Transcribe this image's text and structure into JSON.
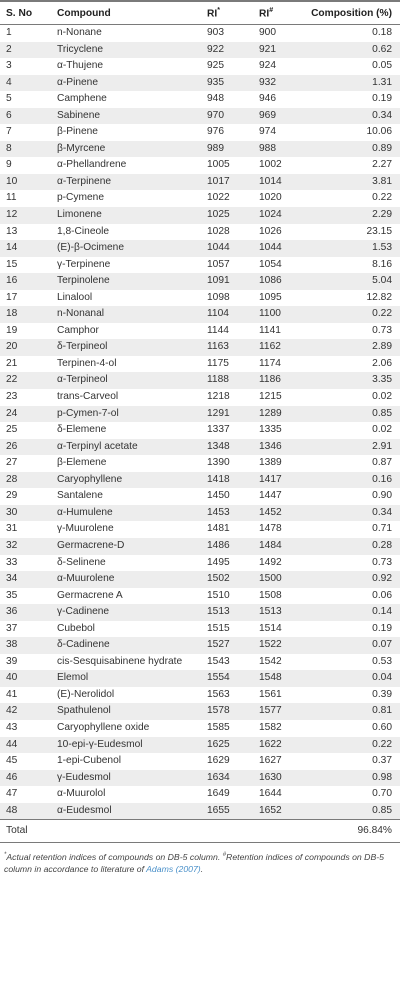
{
  "headers": {
    "sno": "S. No",
    "compound": "Compound",
    "ri1": "RI",
    "ri1_mark": "*",
    "ri2": "RI",
    "ri2_mark": "#",
    "composition": "Composition (%)"
  },
  "rows": [
    [
      "1",
      "n-Nonane",
      "903",
      "900",
      "0.18"
    ],
    [
      "2",
      "Tricyclene",
      "922",
      "921",
      "0.62"
    ],
    [
      "3",
      "α-Thujene",
      "925",
      "924",
      "0.05"
    ],
    [
      "4",
      "α-Pinene",
      "935",
      "932",
      "1.31"
    ],
    [
      "5",
      "Camphene",
      "948",
      "946",
      "0.19"
    ],
    [
      "6",
      "Sabinene",
      "970",
      "969",
      "0.34"
    ],
    [
      "7",
      "β-Pinene",
      "976",
      "974",
      "10.06"
    ],
    [
      "8",
      "β-Myrcene",
      "989",
      "988",
      "0.89"
    ],
    [
      "9",
      "α-Phellandrene",
      "1005",
      "1002",
      "2.27"
    ],
    [
      "10",
      "α-Terpinene",
      "1017",
      "1014",
      "3.81"
    ],
    [
      "11",
      "p-Cymene",
      "1022",
      "1020",
      "0.22"
    ],
    [
      "12",
      "Limonene",
      "1025",
      "1024",
      "2.29"
    ],
    [
      "13",
      "1,8-Cineole",
      "1028",
      "1026",
      "23.15"
    ],
    [
      "14",
      "(E)-β-Ocimene",
      "1044",
      "1044",
      "1.53"
    ],
    [
      "15",
      "γ-Terpinene",
      "1057",
      "1054",
      "8.16"
    ],
    [
      "16",
      "Terpinolene",
      "1091",
      "1086",
      "5.04"
    ],
    [
      "17",
      "Linalool",
      "1098",
      "1095",
      "12.82"
    ],
    [
      "18",
      "n-Nonanal",
      "1104",
      "1100",
      "0.22"
    ],
    [
      "19",
      "Camphor",
      "1144",
      "1141",
      "0.73"
    ],
    [
      "20",
      "δ-Terpineol",
      "1163",
      "1162",
      "2.89"
    ],
    [
      "21",
      "Terpinen-4-ol",
      "1175",
      "1174",
      "2.06"
    ],
    [
      "22",
      "α-Terpineol",
      "1188",
      "1186",
      "3.35"
    ],
    [
      "23",
      "trans-Carveol",
      "1218",
      "1215",
      "0.02"
    ],
    [
      "24",
      "p-Cymen-7-ol",
      "1291",
      "1289",
      "0.85"
    ],
    [
      "25",
      "δ-Elemene",
      "1337",
      "1335",
      "0.02"
    ],
    [
      "26",
      "α-Terpinyl acetate",
      "1348",
      "1346",
      "2.91"
    ],
    [
      "27",
      "β-Elemene",
      "1390",
      "1389",
      "0.87"
    ],
    [
      "28",
      "Caryophyllene",
      "1418",
      "1417",
      "0.16"
    ],
    [
      "29",
      "Santalene",
      "1450",
      "1447",
      "0.90"
    ],
    [
      "30",
      "α-Humulene",
      "1453",
      "1452",
      "0.34"
    ],
    [
      "31",
      "γ-Muurolene",
      "1481",
      "1478",
      "0.71"
    ],
    [
      "32",
      "Germacrene-D",
      "1486",
      "1484",
      "0.28"
    ],
    [
      "33",
      "δ-Selinene",
      "1495",
      "1492",
      "0.73"
    ],
    [
      "34",
      "α-Muurolene",
      "1502",
      "1500",
      "0.92"
    ],
    [
      "35",
      "Germacrene A",
      "1510",
      "1508",
      "0.06"
    ],
    [
      "36",
      "γ-Cadinene",
      "1513",
      "1513",
      "0.14"
    ],
    [
      "37",
      "Cubebol",
      "1515",
      "1514",
      "0.19"
    ],
    [
      "38",
      "δ-Cadinene",
      "1527",
      "1522",
      "0.07"
    ],
    [
      "39",
      "cis-Sesquisabinene hydrate",
      "1543",
      "1542",
      "0.53"
    ],
    [
      "40",
      "Elemol",
      "1554",
      "1548",
      "0.04"
    ],
    [
      "41",
      "(E)-Nerolidol",
      "1563",
      "1561",
      "0.39"
    ],
    [
      "42",
      "Spathulenol",
      "1578",
      "1577",
      "0.81"
    ],
    [
      "43",
      "Caryophyllene oxide",
      "1585",
      "1582",
      "0.60"
    ],
    [
      "44",
      "10-epi-γ-Eudesmol",
      "1625",
      "1622",
      "0.22"
    ],
    [
      "45",
      "1-epi-Cubenol",
      "1629",
      "1627",
      "0.37"
    ],
    [
      "46",
      "γ-Eudesmol",
      "1634",
      "1630",
      "0.98"
    ],
    [
      "47",
      "α-Muurolol",
      "1649",
      "1644",
      "0.70"
    ],
    [
      "48",
      "α-Eudesmol",
      "1655",
      "1652",
      "0.85"
    ]
  ],
  "total": {
    "label": "Total",
    "value": "96.84%"
  },
  "footnote": {
    "mark1": "*",
    "text1": "Actual retention indices of compounds on DB-5 column.",
    "mark2": "#",
    "text2": "Retention indices of compounds on DB-5 column in accordance to literature of",
    "citation": "Adams (2007)",
    "end": "."
  }
}
